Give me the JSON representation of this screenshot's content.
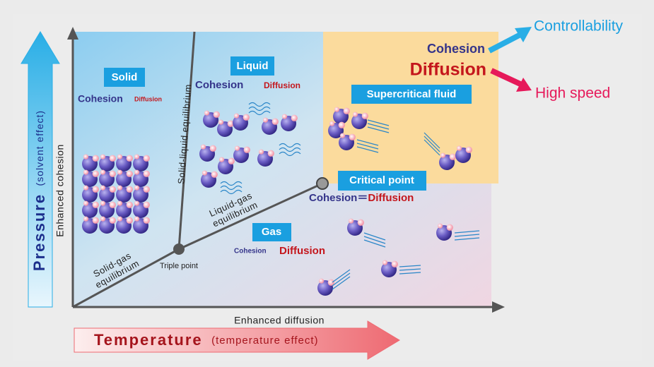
{
  "axes": {
    "y_label": "Enhanced cohesion",
    "x_label": "Enhanced diffusion"
  },
  "pressure": {
    "label": "Pressure",
    "note": "(solvent effect)"
  },
  "temperature": {
    "label": "Temperature",
    "note": "(temperature effect)"
  },
  "regions": {
    "solid": {
      "label": "Solid",
      "cohesion": "Cohesion",
      "diffusion": "Diffusion"
    },
    "liquid": {
      "label": "Liquid",
      "cohesion": "Cohesion",
      "diffusion": "Diffusion"
    },
    "gas": {
      "label": "Gas",
      "cohesion": "Cohesion",
      "diffusion": "Diffusion"
    },
    "supercritical": {
      "label": "Supercritical fluid"
    }
  },
  "critical_point": {
    "label": "Critical point",
    "cohesion": "Cohesion",
    "equals": "＝",
    "diffusion": "Diffusion"
  },
  "triple_point": {
    "label": "Triple point"
  },
  "equilibria": {
    "solid_liquid": [
      "Solid-liquid equilibrium"
    ],
    "liquid_gas": [
      "Liquid-gas",
      "equilibrium"
    ],
    "solid_gas": [
      "Solid-gas",
      "equilibrium"
    ]
  },
  "legend": {
    "cohesion": "Cohesion",
    "diffusion": "Diffusion",
    "controllability": "Controllability",
    "high_speed": "High speed"
  }
}
